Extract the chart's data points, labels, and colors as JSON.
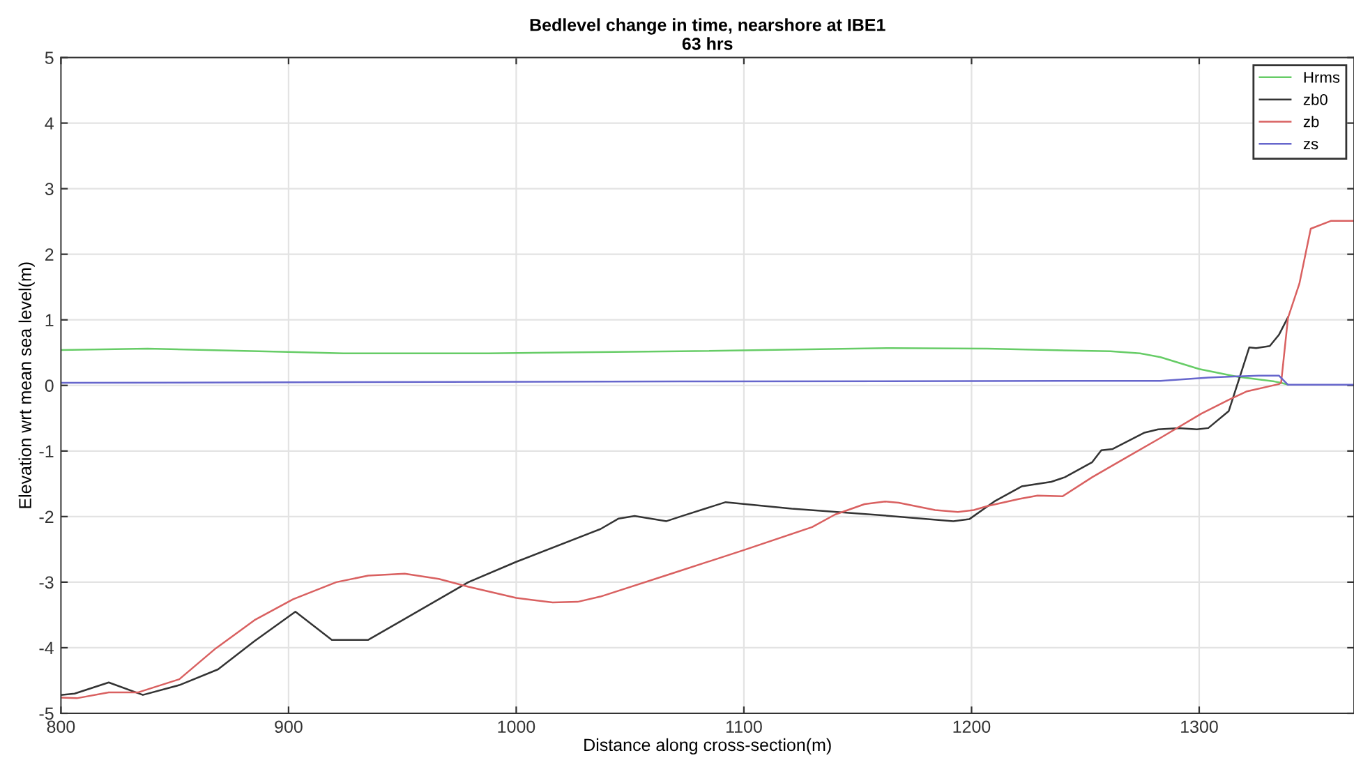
{
  "chart_data": {
    "type": "line",
    "title": "Bedlevel change in time, nearshore at IBE1",
    "subtitle": "63 hrs",
    "xlabel": "Distance along cross-section(m)",
    "ylabel": "Elevation wrt mean sea level(m)",
    "xlim": [
      800,
      1368
    ],
    "xticks": [
      800,
      900,
      1000,
      1100,
      1200,
      1300
    ],
    "ylim": [
      -5,
      5
    ],
    "yticks": [
      -5,
      -4,
      -3,
      -2,
      -1,
      0,
      1,
      2,
      3,
      4,
      5
    ],
    "grid": true,
    "legend": "top right",
    "line_style": "solid",
    "marker": "none",
    "series": [
      {
        "name": "Hrms",
        "color": "#66cc66",
        "x": [
          800,
          838,
          900,
          924,
          988,
          1072,
          1164,
          1207,
          1261,
          1274,
          1283,
          1300,
          1317,
          1333,
          1336,
          1339
        ],
        "values": [
          0.54,
          0.56,
          0.51,
          0.49,
          0.49,
          0.52,
          0.57,
          0.56,
          0.52,
          0.49,
          0.43,
          0.25,
          0.13,
          0.06,
          0.04,
          0.01
        ]
      },
      {
        "name": "zb0",
        "color": "#333333",
        "x": [
          800,
          806,
          821,
          836,
          852,
          869,
          885,
          903,
          919,
          935,
          949,
          979,
          1000,
          1037,
          1045,
          1052,
          1066,
          1073,
          1092,
          1121,
          1164,
          1192,
          1199,
          1210,
          1222,
          1235,
          1241,
          1253,
          1257,
          1262,
          1276,
          1282,
          1291,
          1299,
          1304,
          1313,
          1322,
          1325,
          1331,
          1335,
          1339
        ],
        "values": [
          -4.72,
          -4.7,
          -4.53,
          -4.72,
          -4.57,
          -4.33,
          -3.9,
          -3.45,
          -3.88,
          -3.88,
          -3.6,
          -3.0,
          -2.69,
          -2.19,
          -2.03,
          -1.99,
          -2.07,
          -1.99,
          -1.78,
          -1.88,
          -1.99,
          -2.07,
          -2.04,
          -1.77,
          -1.54,
          -1.47,
          -1.4,
          -1.17,
          -0.99,
          -0.97,
          -0.72,
          -0.67,
          -0.65,
          -0.67,
          -0.65,
          -0.39,
          0.58,
          0.57,
          0.6,
          0.77,
          1.04
        ]
      },
      {
        "name": "zb",
        "color": "#d96060",
        "x": [
          800,
          807,
          821,
          834,
          852,
          868,
          885,
          902,
          921,
          935,
          951,
          966,
          979,
          1000,
          1016,
          1027,
          1037,
          1070,
          1100,
          1130,
          1140,
          1153,
          1162,
          1168,
          1184,
          1194,
          1201,
          1207,
          1221,
          1229,
          1240,
          1253,
          1268,
          1283,
          1301,
          1313,
          1321,
          1335,
          1336,
          1339,
          1344,
          1349,
          1358,
          1368
        ],
        "values": [
          -4.76,
          -4.77,
          -4.68,
          -4.68,
          -4.48,
          -4.01,
          -3.58,
          -3.26,
          -3.0,
          -2.9,
          -2.87,
          -2.95,
          -3.07,
          -3.24,
          -3.31,
          -3.3,
          -3.22,
          -2.85,
          -2.51,
          -2.16,
          -1.97,
          -1.81,
          -1.77,
          -1.79,
          -1.9,
          -1.93,
          -1.9,
          -1.84,
          -1.73,
          -1.68,
          -1.69,
          -1.4,
          -1.1,
          -0.8,
          -0.43,
          -0.22,
          -0.09,
          0.02,
          0.04,
          1.03,
          1.55,
          2.39,
          2.51,
          2.51
        ]
      },
      {
        "name": "zs",
        "color": "#6666cc",
        "x": [
          800,
          1072,
          1283,
          1304,
          1326,
          1335,
          1339,
          1368
        ],
        "values": [
          0.04,
          0.06,
          0.07,
          0.12,
          0.15,
          0.15,
          0.01,
          0.01
        ]
      }
    ]
  }
}
